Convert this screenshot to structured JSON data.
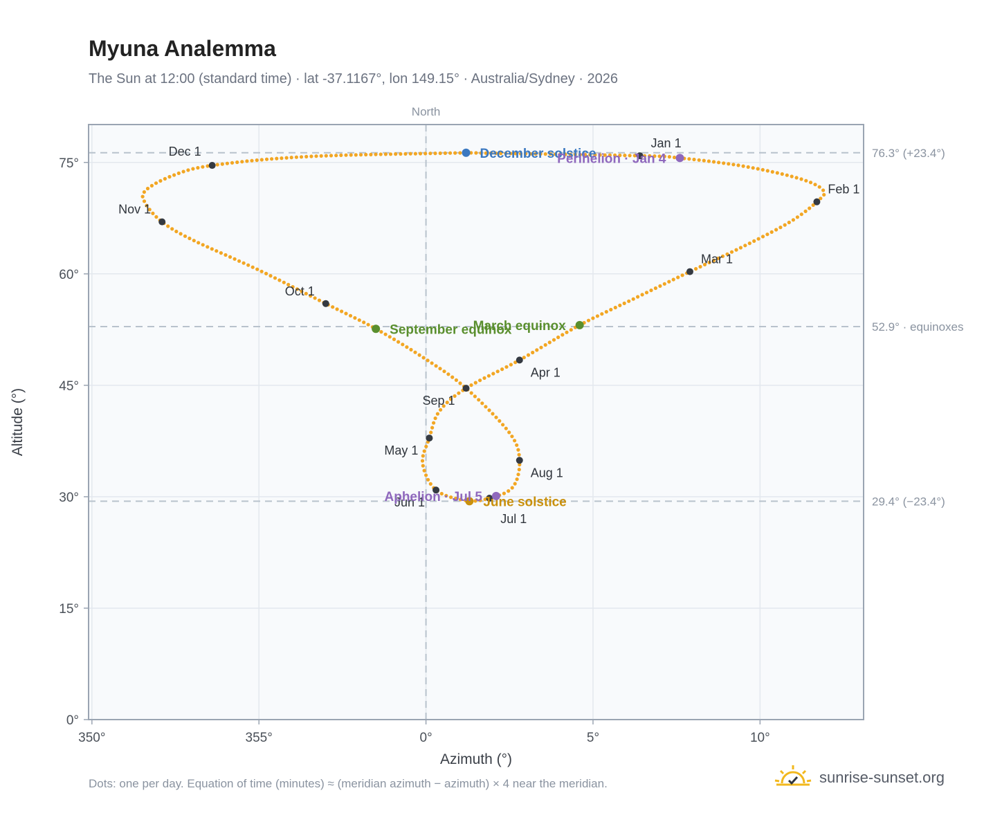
{
  "header": {
    "title": "Myuna Analemma",
    "subtitle": "The Sun at 12:00 (standard time) · lat -37.1167°, lon 149.15° · Australia/Sydney · 2026"
  },
  "footer": {
    "note": "Dots: one per day. Equation of time (minutes) ≈ (meridian azimuth − azimuth) × 4 near the meridian.",
    "brand": "sunrise-sunset.org",
    "brand_icon": "sunrise-logo-icon"
  },
  "colors": {
    "analemma": "#f2a623",
    "month_marker": "#353a42",
    "december_solstice": "#3b78c0",
    "june_solstice": "#c9900c",
    "equinox": "#5a8f2e",
    "perihelion_aphelion": "#8f68bd",
    "reference_line": "#b8c2cc",
    "plot_background": "#f8fafc",
    "grid": "#e3e8ee",
    "frame": "#9aa4b2"
  },
  "chart_data": {
    "type": "scatter",
    "title": "Myuna Analemma",
    "xlabel": "Azimuth (°)",
    "ylabel": "Altitude (°)",
    "xlim": [
      349.9,
      13.1
    ],
    "ylim": [
      0,
      80.1
    ],
    "x_ticks": [
      {
        "value": 350,
        "label": "350°"
      },
      {
        "value": 355,
        "label": "355°"
      },
      {
        "value": 360,
        "label": "0°"
      },
      {
        "value": 365,
        "label": "5°"
      },
      {
        "value": 370,
        "label": "10°"
      }
    ],
    "y_ticks": [
      {
        "value": 0,
        "label": "0°"
      },
      {
        "value": 15,
        "label": "15°"
      },
      {
        "value": 30,
        "label": "30°"
      },
      {
        "value": 45,
        "label": "45°"
      },
      {
        "value": 60,
        "label": "60°"
      },
      {
        "value": 75,
        "label": "75°"
      }
    ],
    "grid": true,
    "meridian": {
      "azimuth": 360,
      "label": "North"
    },
    "reference_lines": [
      {
        "altitude": 76.3,
        "label": "76.3° (+23.4°)"
      },
      {
        "altitude": 52.9,
        "label": "52.9° · equinoxes"
      },
      {
        "altitude": 29.4,
        "label": "29.4° (−23.4°)"
      }
    ],
    "month_markers": [
      {
        "label": "Jan 1",
        "azimuth": 366.4,
        "altitude": 75.9
      },
      {
        "label": "Feb 1",
        "azimuth": 371.7,
        "altitude": 69.7
      },
      {
        "label": "Mar 1",
        "azimuth": 367.9,
        "altitude": 60.3
      },
      {
        "label": "Apr 1",
        "azimuth": 362.8,
        "altitude": 48.4
      },
      {
        "label": "May 1",
        "azimuth": 360.1,
        "altitude": 37.9
      },
      {
        "label": "Jun 1",
        "azimuth": 360.3,
        "altitude": 30.9
      },
      {
        "label": "Jul 1",
        "azimuth": 361.9,
        "altitude": 29.8
      },
      {
        "label": "Aug 1",
        "azimuth": 362.8,
        "altitude": 34.9
      },
      {
        "label": "Sep 1",
        "azimuth": 361.2,
        "altitude": 44.6
      },
      {
        "label": "Oct 1",
        "azimuth": 357.0,
        "altitude": 56.0
      },
      {
        "label": "Nov 1",
        "azimuth": 352.1,
        "altitude": 67.0
      },
      {
        "label": "Dec 1",
        "azimuth": 353.6,
        "altitude": 74.6
      }
    ],
    "events": [
      {
        "label": "December solstice",
        "azimuth": 361.2,
        "altitude": 76.3,
        "color": "#3b78c0"
      },
      {
        "label": "Perihelion · Jan 4",
        "azimuth": 367.6,
        "altitude": 75.6,
        "color": "#8f68bd"
      },
      {
        "label": "March equinox",
        "azimuth": 364.6,
        "altitude": 53.1,
        "color": "#5a8f2e"
      },
      {
        "label": "September equinox",
        "azimuth": 358.5,
        "altitude": 52.6,
        "color": "#5a8f2e"
      },
      {
        "label": "June solstice",
        "azimuth": 361.3,
        "altitude": 29.4,
        "color": "#c9900c"
      },
      {
        "label": "Aphelion · Jul 5",
        "azimuth": 362.1,
        "altitude": 30.1,
        "color": "#8f68bd"
      }
    ],
    "path": [
      {
        "azimuth": 361.2,
        "altitude": 76.3
      },
      {
        "azimuth": 366.4,
        "altitude": 75.9
      },
      {
        "azimuth": 367.6,
        "altitude": 75.6
      },
      {
        "azimuth": 369.5,
        "altitude": 74.5
      },
      {
        "azimuth": 371.2,
        "altitude": 72.8
      },
      {
        "azimuth": 371.9,
        "altitude": 71.2
      },
      {
        "azimuth": 371.7,
        "altitude": 69.7
      },
      {
        "azimuth": 370.9,
        "altitude": 67.0
      },
      {
        "azimuth": 369.5,
        "altitude": 63.7
      },
      {
        "azimuth": 367.9,
        "altitude": 60.3
      },
      {
        "azimuth": 366.2,
        "altitude": 56.6
      },
      {
        "azimuth": 364.6,
        "altitude": 53.1
      },
      {
        "azimuth": 362.8,
        "altitude": 48.4
      },
      {
        "azimuth": 361.2,
        "altitude": 44.6
      },
      {
        "azimuth": 360.4,
        "altitude": 41.5
      },
      {
        "azimuth": 360.1,
        "altitude": 37.9
      },
      {
        "azimuth": 359.9,
        "altitude": 34.5
      },
      {
        "azimuth": 360.3,
        "altitude": 30.9
      },
      {
        "azimuth": 361.2,
        "altitude": 29.5
      },
      {
        "azimuth": 361.9,
        "altitude": 29.8
      },
      {
        "azimuth": 362.6,
        "altitude": 31.3
      },
      {
        "azimuth": 362.8,
        "altitude": 34.9
      },
      {
        "azimuth": 362.5,
        "altitude": 38.6
      },
      {
        "azimuth": 361.2,
        "altitude": 44.6
      },
      {
        "azimuth": 360.0,
        "altitude": 48.5
      },
      {
        "azimuth": 358.5,
        "altitude": 52.6
      },
      {
        "azimuth": 357.0,
        "altitude": 56.0
      },
      {
        "azimuth": 355.0,
        "altitude": 60.5
      },
      {
        "azimuth": 353.0,
        "altitude": 64.6
      },
      {
        "azimuth": 352.1,
        "altitude": 67.0
      },
      {
        "azimuth": 351.6,
        "altitude": 69.5
      },
      {
        "azimuth": 351.6,
        "altitude": 71.2
      },
      {
        "azimuth": 352.4,
        "altitude": 73.2
      },
      {
        "azimuth": 353.6,
        "altitude": 74.6
      },
      {
        "azimuth": 356.5,
        "altitude": 75.8
      },
      {
        "azimuth": 361.2,
        "altitude": 76.3
      }
    ]
  }
}
